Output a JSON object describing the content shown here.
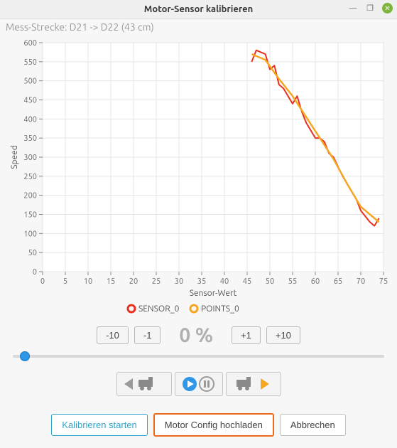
{
  "window": {
    "title": "Motor-Sensor kalibrieren",
    "subtitle": "Mess-Strecke: D21 -> D22 (43 cm)"
  },
  "chart": {
    "type": "line",
    "x_label": "Sensor-Wert",
    "y_label": "Speed",
    "xlim": [
      0,
      75
    ],
    "ylim": [
      0,
      600
    ],
    "xtick_step": 5,
    "ytick_step": 50,
    "background_color": "#ffffff",
    "grid_color": "#e5e5e5",
    "axis_color": "#888888",
    "label_fontsize": 12,
    "tick_fontsize": 11,
    "series": [
      {
        "name": "SENSOR_0",
        "color": "#e8301f",
        "line_width": 2,
        "points": [
          [
            46,
            550
          ],
          [
            47,
            580
          ],
          [
            49,
            570
          ],
          [
            50,
            530
          ],
          [
            51,
            540
          ],
          [
            52,
            490
          ],
          [
            53,
            480
          ],
          [
            55,
            440
          ],
          [
            56,
            460
          ],
          [
            57,
            420
          ],
          [
            58,
            390
          ],
          [
            60,
            350
          ],
          [
            61,
            350
          ],
          [
            62,
            340
          ],
          [
            63,
            310
          ],
          [
            64,
            300
          ],
          [
            66,
            250
          ],
          [
            67,
            230
          ],
          [
            69,
            190
          ],
          [
            70,
            160
          ],
          [
            72,
            130
          ],
          [
            73,
            120
          ],
          [
            74,
            140
          ]
        ]
      },
      {
        "name": "POINTS_0",
        "color": "#f5a623",
        "line_width": 2.5,
        "points": [
          [
            46,
            570
          ],
          [
            49,
            555
          ],
          [
            52,
            505
          ],
          [
            55,
            460
          ],
          [
            58,
            405
          ],
          [
            61,
            350
          ],
          [
            64,
            295
          ],
          [
            67,
            230
          ],
          [
            70,
            170
          ],
          [
            74,
            130
          ]
        ]
      }
    ],
    "legend": {
      "items": [
        {
          "label": "SENSOR_0",
          "color": "#e8301f"
        },
        {
          "label": "POINTS_0",
          "color": "#f5a623"
        }
      ]
    }
  },
  "stepper": {
    "minus10": "-10",
    "minus1": "-1",
    "value": "0 %",
    "plus1": "+1",
    "plus10": "+10"
  },
  "slider": {
    "min": 0,
    "max": 100,
    "value": 2
  },
  "playback": {
    "reverse_color": "#9a9a9a",
    "play_color": "#2d96e6",
    "pause_color": "#9a9a9a",
    "forward_color": "#f5a623",
    "train_color": "#8a8a8a"
  },
  "buttons": {
    "calibrate": "Kalibrieren starten",
    "upload": "Motor Config hochladen",
    "cancel": "Abbrechen"
  }
}
